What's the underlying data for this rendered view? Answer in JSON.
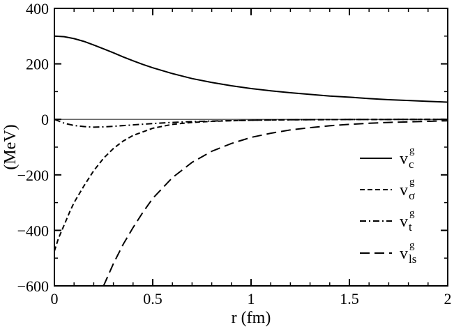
{
  "chart_data": {
    "type": "line",
    "title": "",
    "xlabel": "r (fm)",
    "ylabel": "(MeV)",
    "xlim": [
      0,
      2
    ],
    "ylim": [
      -600,
      400
    ],
    "x_ticks": [
      {
        "value": 0,
        "label": "0"
      },
      {
        "value": 0.5,
        "label": "0.5"
      },
      {
        "value": 1,
        "label": "1"
      },
      {
        "value": 1.5,
        "label": "1.5"
      },
      {
        "value": 2,
        "label": "2"
      }
    ],
    "y_ticks": [
      {
        "value": -600,
        "label": "−600"
      },
      {
        "value": -400,
        "label": "−400"
      },
      {
        "value": -200,
        "label": "−200"
      },
      {
        "value": 0,
        "label": "0"
      },
      {
        "value": 200,
        "label": "200"
      },
      {
        "value": 400,
        "label": "400"
      }
    ],
    "grid": false,
    "zero_line": true,
    "legend_position": "right",
    "series": [
      {
        "name": "v_c^g",
        "label_main": "v",
        "label_sub": "c",
        "label_sup": "g",
        "dash": "solid",
        "x": [
          0,
          0.05,
          0.1,
          0.15,
          0.2,
          0.25,
          0.3,
          0.35,
          0.4,
          0.45,
          0.5,
          0.6,
          0.7,
          0.8,
          0.9,
          1.0,
          1.1,
          1.2,
          1.3,
          1.4,
          1.5,
          1.6,
          1.7,
          1.8,
          1.9,
          2.0
        ],
        "y": [
          300,
          298,
          291,
          281,
          268,
          254,
          240,
          225,
          211,
          198,
          186,
          165,
          147,
          133,
          121,
          111,
          103,
          96,
          90,
          84,
          80,
          75,
          71,
          68,
          65,
          62
        ]
      },
      {
        "name": "v_σ^g",
        "label_main": "v",
        "label_sub": "σ",
        "label_sup": "g",
        "dash": "short",
        "x": [
          0,
          0.02,
          0.05,
          0.08,
          0.1,
          0.15,
          0.2,
          0.25,
          0.3,
          0.35,
          0.4,
          0.5,
          0.6,
          0.7,
          0.8,
          1.0,
          1.2,
          1.5,
          2.0
        ],
        "y": [
          -475,
          -430,
          -380,
          -330,
          -300,
          -240,
          -185,
          -140,
          -105,
          -78,
          -58,
          -32,
          -18,
          -11,
          -7,
          -3,
          -1.5,
          -0.5,
          0
        ]
      },
      {
        "name": "v_t^g",
        "label_main": "v",
        "label_sub": "t",
        "label_sup": "g",
        "dash": "dashdot",
        "x": [
          0,
          0.05,
          0.1,
          0.15,
          0.2,
          0.25,
          0.3,
          0.4,
          0.5,
          0.6,
          0.7,
          0.8,
          1.0,
          1.2,
          1.5,
          2.0
        ],
        "y": [
          0,
          -14,
          -22,
          -26,
          -28,
          -27,
          -25,
          -20,
          -15,
          -11,
          -8,
          -6,
          -3,
          -1.5,
          -0.5,
          0
        ]
      },
      {
        "name": "v_ls^g",
        "label_main": "v",
        "label_sub": "ls",
        "label_sup": "g",
        "dash": "long",
        "x": [
          0.25,
          0.3,
          0.35,
          0.4,
          0.45,
          0.5,
          0.6,
          0.7,
          0.8,
          0.9,
          1.0,
          1.1,
          1.2,
          1.3,
          1.4,
          1.5,
          1.6,
          1.7,
          1.8,
          1.9,
          2.0
        ],
        "y": [
          -600,
          -520,
          -450,
          -390,
          -335,
          -285,
          -210,
          -155,
          -115,
          -87,
          -65,
          -50,
          -38,
          -30,
          -23,
          -18,
          -14,
          -11,
          -9,
          -7,
          -5
        ]
      }
    ]
  }
}
